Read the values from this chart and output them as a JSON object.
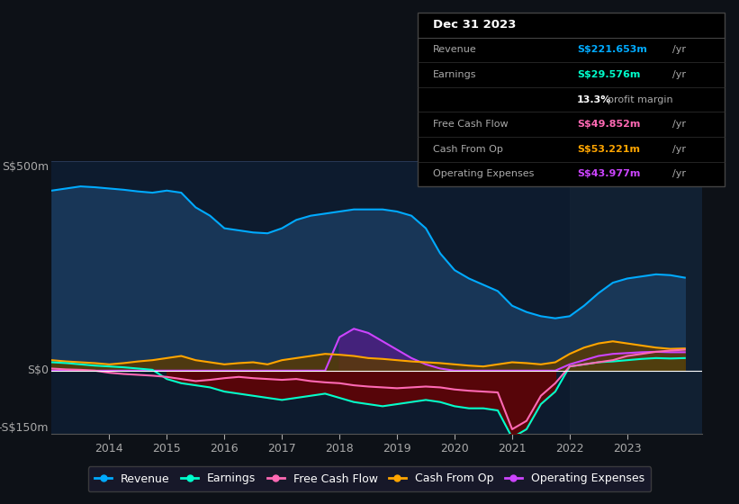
{
  "bg_color": "#0d1117",
  "plot_bg_color": "#0d1b2e",
  "title": "Dec 31 2023",
  "ylim": [
    -150,
    500
  ],
  "xlim_start": 2013.0,
  "xlim_end": 2024.3,
  "xticks": [
    2014,
    2015,
    2016,
    2017,
    2018,
    2019,
    2020,
    2021,
    2022,
    2023
  ],
  "revenue_color": "#00aaff",
  "earnings_color": "#00ffcc",
  "fcf_color": "#ff69b4",
  "cashop_color": "#ffa500",
  "opex_color": "#cc44ff",
  "revenue_fill_color": "#1a3a5c",
  "opex_fill_color": "#4a2080",
  "cashop_fill_color": "#5c3a00",
  "years": [
    2013.0,
    2013.25,
    2013.5,
    2013.75,
    2014.0,
    2014.25,
    2014.5,
    2014.75,
    2015.0,
    2015.25,
    2015.5,
    2015.75,
    2016.0,
    2016.25,
    2016.5,
    2016.75,
    2017.0,
    2017.25,
    2017.5,
    2017.75,
    2018.0,
    2018.25,
    2018.5,
    2018.75,
    2019.0,
    2019.25,
    2019.5,
    2019.75,
    2020.0,
    2020.25,
    2020.5,
    2020.75,
    2021.0,
    2021.25,
    2021.5,
    2021.75,
    2022.0,
    2022.25,
    2022.5,
    2022.75,
    2023.0,
    2023.25,
    2023.5,
    2023.75,
    2024.0
  ],
  "revenue": [
    430,
    435,
    440,
    438,
    435,
    432,
    428,
    425,
    430,
    425,
    390,
    370,
    340,
    335,
    330,
    328,
    340,
    360,
    370,
    375,
    380,
    385,
    385,
    385,
    380,
    370,
    340,
    280,
    240,
    220,
    205,
    190,
    155,
    140,
    130,
    125,
    130,
    155,
    185,
    210,
    220,
    225,
    230,
    228,
    222
  ],
  "earnings": [
    20,
    18,
    15,
    12,
    10,
    8,
    5,
    2,
    -20,
    -30,
    -35,
    -40,
    -50,
    -55,
    -60,
    -65,
    -70,
    -65,
    -60,
    -55,
    -65,
    -75,
    -80,
    -85,
    -80,
    -75,
    -70,
    -75,
    -85,
    -90,
    -90,
    -95,
    -160,
    -140,
    -80,
    -50,
    10,
    15,
    20,
    22,
    25,
    28,
    30,
    29,
    30
  ],
  "free_cash_flow": [
    5,
    3,
    2,
    0,
    -5,
    -8,
    -10,
    -12,
    -15,
    -20,
    -25,
    -22,
    -18,
    -15,
    -18,
    -20,
    -22,
    -20,
    -25,
    -28,
    -30,
    -35,
    -38,
    -40,
    -42,
    -40,
    -38,
    -40,
    -45,
    -48,
    -50,
    -52,
    -140,
    -120,
    -60,
    -30,
    10,
    15,
    20,
    25,
    35,
    40,
    45,
    48,
    50
  ],
  "cash_from_op": [
    25,
    22,
    20,
    18,
    15,
    18,
    22,
    25,
    30,
    35,
    25,
    20,
    15,
    18,
    20,
    15,
    25,
    30,
    35,
    40,
    38,
    35,
    30,
    28,
    25,
    22,
    20,
    18,
    15,
    12,
    10,
    15,
    20,
    18,
    15,
    20,
    40,
    55,
    65,
    70,
    65,
    60,
    55,
    52,
    53
  ],
  "operating_expenses": [
    0,
    0,
    0,
    0,
    0,
    0,
    0,
    0,
    0,
    0,
    0,
    0,
    0,
    0,
    0,
    0,
    0,
    0,
    0,
    0,
    80,
    100,
    90,
    70,
    50,
    30,
    15,
    5,
    0,
    0,
    0,
    0,
    0,
    0,
    0,
    0,
    15,
    25,
    35,
    40,
    42,
    44,
    45,
    44,
    44
  ],
  "table_rows": [
    {
      "label": "Revenue",
      "value": "S$221.653m",
      "unit": "/yr",
      "val_color": "#00aaff",
      "bold_val": true
    },
    {
      "label": "Earnings",
      "value": "S$29.576m",
      "unit": "/yr",
      "val_color": "#00ffcc",
      "bold_val": true
    },
    {
      "label": "",
      "value": "13.3%",
      "unit": "profit margin",
      "val_color": "#ffffff",
      "bold_val": true
    },
    {
      "label": "Free Cash Flow",
      "value": "S$49.852m",
      "unit": "/yr",
      "val_color": "#ff69b4",
      "bold_val": true
    },
    {
      "label": "Cash From Op",
      "value": "S$53.221m",
      "unit": "/yr",
      "val_color": "#ffa500",
      "bold_val": true
    },
    {
      "label": "Operating Expenses",
      "value": "S$43.977m",
      "unit": "/yr",
      "val_color": "#cc44ff",
      "bold_val": true
    }
  ],
  "legend_labels": [
    "Revenue",
    "Earnings",
    "Free Cash Flow",
    "Cash From Op",
    "Operating Expenses"
  ],
  "legend_colors": [
    "#00aaff",
    "#00ffcc",
    "#ff69b4",
    "#ffa500",
    "#cc44ff"
  ]
}
